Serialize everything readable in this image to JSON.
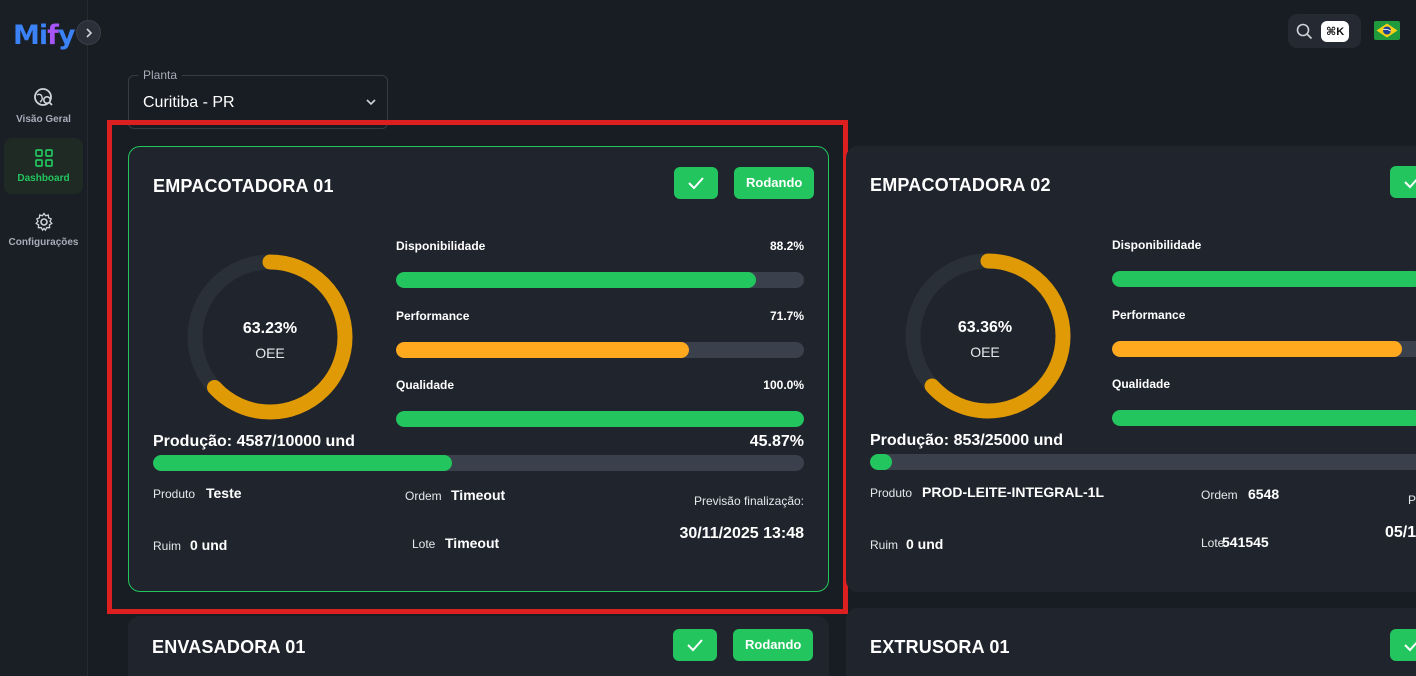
{
  "app": {
    "logo_text": "Mify"
  },
  "colors": {
    "accent_green": "#22c55e",
    "warning_orange": "#f59e0b",
    "alert_red": "#dc1f1f",
    "background": "#181c23"
  },
  "sidebar": {
    "items": [
      {
        "label": "Visão Geral",
        "icon": "globe-search-icon"
      },
      {
        "label": "Dashboard",
        "icon": "grid-icon",
        "active": true
      },
      {
        "label": "Configurações",
        "icon": "gear-icon"
      }
    ]
  },
  "topbar": {
    "search_shortcut": "⌘K",
    "language_flag": "brazil-flag-icon"
  },
  "plant_select": {
    "legend": "Planta",
    "value": "Curitiba - PR"
  },
  "cards": [
    {
      "title": "EMPACOTADORA 01",
      "status": "Rodando",
      "oee_value": "63.23%",
      "oee_fraction": 0.6323,
      "oee_label": "OEE",
      "metrics": [
        {
          "label": "Disponibilidade",
          "value": "88.2%",
          "fraction": 0.882,
          "color": "#22c55e"
        },
        {
          "label": "Performance",
          "value": "71.7%",
          "fraction": 0.717,
          "color": "#ffa91f"
        },
        {
          "label": "Qualidade",
          "value": "100.0%",
          "fraction": 1.0,
          "color": "#22c55e"
        }
      ],
      "production_label": "Produção: 4587/10000 und",
      "production_pct": "45.87%",
      "production_fraction": 0.4587,
      "product_key": "Produto",
      "product_value": "Teste",
      "order_key": "Ordem",
      "order_value": "Timeout",
      "bad_key": "Ruim",
      "bad_value": "0 und",
      "lot_key": "Lote",
      "lot_value": "Timeout",
      "forecast_label": "Previsão finalização:",
      "forecast_value": "30/11/2025 13:48"
    },
    {
      "title": "EMPACOTADORA 02",
      "oee_value": "63.36%",
      "oee_fraction": 0.6336,
      "oee_label": "OEE",
      "metrics": [
        {
          "label": "Disponibilidade",
          "color": "#22c55e"
        },
        {
          "label": "Performance",
          "color": "#ffa91f"
        },
        {
          "label": "Qualidade",
          "color": "#22c55e"
        }
      ],
      "production_label": "Produção: 853/25000 und",
      "production_fraction": 0.0341,
      "product_key": "Produto",
      "product_value": "PROD-LEITE-INTEGRAL-1L",
      "order_key": "Ordem",
      "order_value": "6548",
      "bad_key": "Ruim",
      "bad_value": "0 und",
      "lot_key": "Lote",
      "lot_value": "541545",
      "forecast_label_partial": "P",
      "forecast_value_partial": "05/1"
    },
    {
      "title": "ENVASADORA 01",
      "status": "Rodando"
    },
    {
      "title": "EXTRUSORA 01"
    }
  ]
}
